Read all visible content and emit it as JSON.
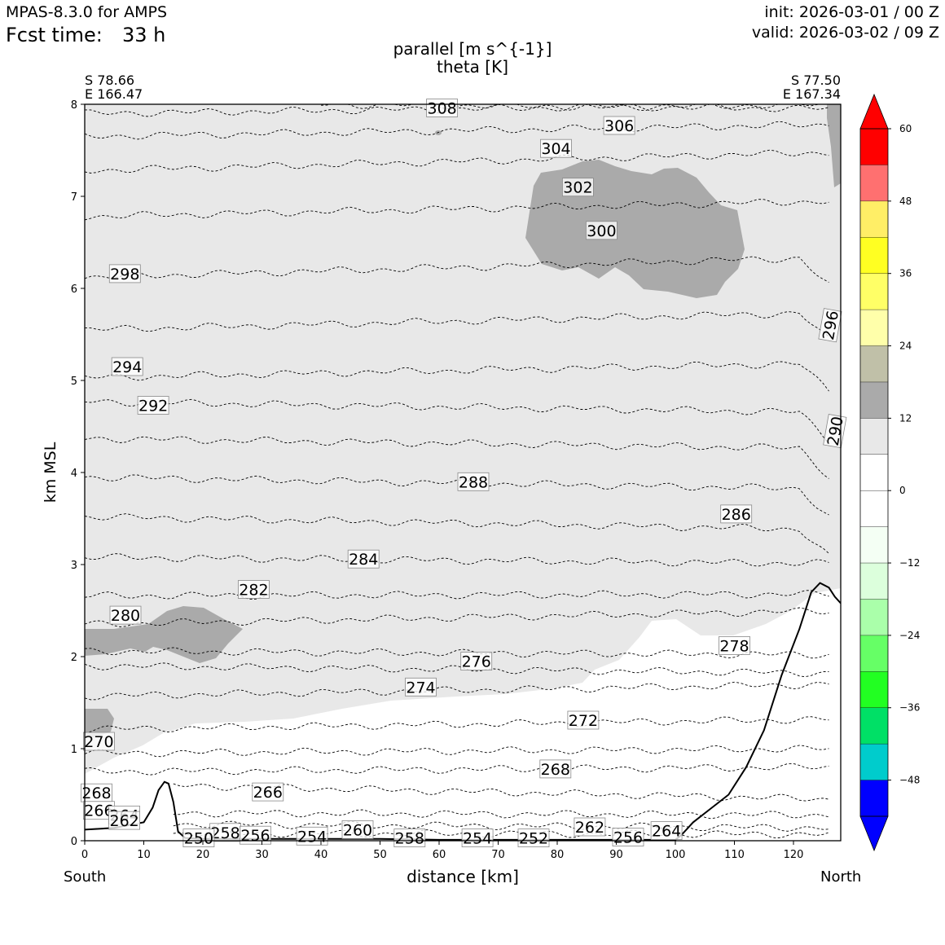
{
  "header": {
    "model": "MPAS-8.3.0 for AMPS",
    "fcst_label": "Fcst time:",
    "fcst_value": "33 h",
    "init": "init: 2026-03-01 / 00 Z",
    "valid": "valid: 2026-03-02 / 09 Z"
  },
  "chart_data": {
    "type": "cross-section",
    "title": "parallel [m s^{-1}]",
    "subtitle": "theta [K]",
    "xlabel": "distance [km]",
    "ylabel": "km MSL",
    "xlim": [
      0,
      128
    ],
    "ylim": [
      0,
      8
    ],
    "x_ticks": [
      0,
      10,
      20,
      30,
      40,
      50,
      60,
      70,
      80,
      90,
      100,
      110,
      120
    ],
    "y_ticks": [
      0,
      1,
      2,
      3,
      4,
      5,
      6,
      7,
      8
    ],
    "start_point": {
      "lat": "S 78.66",
      "lon": "E 166.47",
      "label": "South"
    },
    "end_point": {
      "lat": "S 77.50",
      "lon": "E 167.34",
      "label": "North"
    },
    "colorbar": {
      "levels": [
        -54,
        -48,
        -42,
        -36,
        -30,
        -24,
        -18,
        -12,
        -6,
        0,
        6,
        12,
        18,
        24,
        30,
        36,
        42,
        48,
        54,
        60
      ],
      "tick_labels": [
        "−48",
        "−36",
        "−24",
        "−12",
        "0",
        "12",
        "24",
        "36",
        "48",
        "60"
      ],
      "tick_values": [
        -48,
        -36,
        -24,
        -12,
        0,
        12,
        24,
        36,
        48,
        60
      ],
      "under_color": "#0000ff",
      "over_color": "#ff0000",
      "colors": [
        "#0000ff",
        "#00cccc",
        "#00e066",
        "#22ff22",
        "#66ff66",
        "#aaffaa",
        "#dcffdc",
        "#f4fff4",
        "#ffffff",
        "#ffffff",
        "#e8e8e8",
        "#aaaaaa",
        "#c0c0a8",
        "#ffffaa",
        "#ffff66",
        "#ffff22",
        "#ffee66",
        "#ff7070",
        "#ff0000"
      ]
    },
    "terrain": {
      "x": [
        0,
        5,
        10,
        11.5,
        12.5,
        13.5,
        14.2,
        15,
        15.8,
        17,
        20,
        30,
        40,
        50,
        60,
        70,
        80,
        90,
        100,
        101,
        103,
        106,
        109,
        112,
        115,
        118,
        121,
        123,
        124.5,
        126,
        127,
        128
      ],
      "y": [
        0.12,
        0.14,
        0.2,
        0.36,
        0.55,
        0.64,
        0.62,
        0.42,
        0.1,
        0.03,
        0.02,
        0.02,
        0.02,
        0.02,
        0.01,
        0.01,
        0.01,
        0.01,
        0.01,
        0.06,
        0.2,
        0.35,
        0.5,
        0.8,
        1.2,
        1.8,
        2.3,
        2.7,
        2.8,
        2.75,
        2.65,
        2.58
      ]
    },
    "theta_contours": [
      {
        "value": "308",
        "lx": 60.5,
        "ly": 7.96
      },
      {
        "value": "306",
        "lx": 90.5,
        "ly": 7.77
      },
      {
        "value": "304",
        "lx": 79.8,
        "ly": 7.52
      },
      {
        "value": "302",
        "lx": 83.5,
        "ly": 7.1
      },
      {
        "value": "300",
        "lx": 87.5,
        "ly": 6.63
      },
      {
        "value": "298",
        "lx": 6.8,
        "ly": 6.16
      },
      {
        "value": "296",
        "lx": 126.2,
        "ly": 5.6
      },
      {
        "value": "294",
        "lx": 7.2,
        "ly": 5.15
      },
      {
        "value": "292",
        "lx": 11.6,
        "ly": 4.73
      },
      {
        "value": "290",
        "lx": 127.0,
        "ly": 4.45
      },
      {
        "value": "288",
        "lx": 65.8,
        "ly": 3.9
      },
      {
        "value": "286",
        "lx": 110.3,
        "ly": 3.55
      },
      {
        "value": "284",
        "lx": 47.2,
        "ly": 3.06
      },
      {
        "value": "282",
        "lx": 28.6,
        "ly": 2.73
      },
      {
        "value": "280",
        "lx": 6.9,
        "ly": 2.45
      },
      {
        "value": "278",
        "lx": 110.0,
        "ly": 2.12
      },
      {
        "value": "276",
        "lx": 66.3,
        "ly": 1.95
      },
      {
        "value": "274",
        "lx": 56.9,
        "ly": 1.67
      },
      {
        "value": "272",
        "lx": 84.4,
        "ly": 1.31
      },
      {
        "value": "270",
        "lx": 2.4,
        "ly": 1.08
      },
      {
        "value": "268",
        "lx": 79.7,
        "ly": 0.78
      },
      {
        "value": "268",
        "lx": 2.0,
        "ly": 0.52
      },
      {
        "value": "266",
        "lx": 31.0,
        "ly": 0.53
      },
      {
        "value": "266",
        "lx": 2.4,
        "ly": 0.33
      },
      {
        "value": "264",
        "lx": 6.7,
        "ly": 0.28
      },
      {
        "value": "264",
        "lx": 98.5,
        "ly": 0.11
      },
      {
        "value": "262",
        "lx": 6.7,
        "ly": 0.22
      },
      {
        "value": "262",
        "lx": 85.5,
        "ly": 0.15
      },
      {
        "value": "260",
        "lx": 46.2,
        "ly": 0.12
      },
      {
        "value": "258",
        "lx": 23.8,
        "ly": 0.09
      },
      {
        "value": "258",
        "lx": 55.0,
        "ly": 0.03
      },
      {
        "value": "256",
        "lx": 28.9,
        "ly": 0.06
      },
      {
        "value": "256",
        "lx": 92.0,
        "ly": 0.04
      },
      {
        "value": "254",
        "lx": 38.5,
        "ly": 0.05
      },
      {
        "value": "254",
        "lx": 66.5,
        "ly": 0.03
      },
      {
        "value": "252",
        "lx": 76.0,
        "ly": 0.03
      },
      {
        "value": "250",
        "lx": 19.3,
        "ly": 0.03
      }
    ],
    "contour_lines": [
      {
        "x0": 40,
        "y0": 8.0,
        "y1": 7.95
      },
      {
        "x0": 0,
        "y0": 7.9,
        "y1": 8.0
      },
      {
        "x0": 0,
        "y0": 7.65,
        "y1": 7.78
      },
      {
        "x0": 0,
        "y0": 7.28,
        "y1": 7.48
      },
      {
        "x0": 0,
        "y0": 6.78,
        "y1": 6.95
      },
      {
        "x0": 0,
        "y0": 6.12,
        "y1": 6.34
      },
      {
        "x0": 0,
        "y0": 5.55,
        "y1": 5.74
      },
      {
        "x0": 0,
        "y0": 5.03,
        "y1": 5.19
      },
      {
        "x0": 0,
        "y0": 4.77,
        "y1": 4.65
      },
      {
        "x0": 0,
        "y0": 4.37,
        "y1": 4.26
      },
      {
        "x0": 0,
        "y0": 3.95,
        "y1": 3.82
      },
      {
        "x0": 0,
        "y0": 3.52,
        "y1": 3.38
      },
      {
        "x0": 0,
        "y0": 3.08,
        "y1": 3.01
      },
      {
        "x0": 0,
        "y0": 2.66,
        "y1": 2.68
      },
      {
        "x0": 0,
        "y0": 2.35,
        "y1": 2.5
      },
      {
        "x0": 0,
        "y0": 2.06,
        "y1": 2.02
      },
      {
        "x0": 0,
        "y0": 1.9,
        "y1": 1.82
      },
      {
        "x0": 0,
        "y0": 1.57,
        "y1": 1.7
      },
      {
        "x0": 0,
        "y0": 1.21,
        "y1": 1.32
      },
      {
        "x0": 0,
        "y0": 0.95,
        "y1": 1.0
      },
      {
        "x0": 0,
        "y0": 0.75,
        "y1": 0.8
      },
      {
        "x0": 15,
        "y0": 0.6,
        "y1": 0.45
      },
      {
        "x0": 15,
        "y0": 0.3,
        "y1": 0.28
      },
      {
        "x0": 15,
        "y0": 0.18,
        "y1": 0.14
      },
      {
        "x0": 15,
        "y0": 0.08,
        "y1": 0.07
      }
    ]
  }
}
